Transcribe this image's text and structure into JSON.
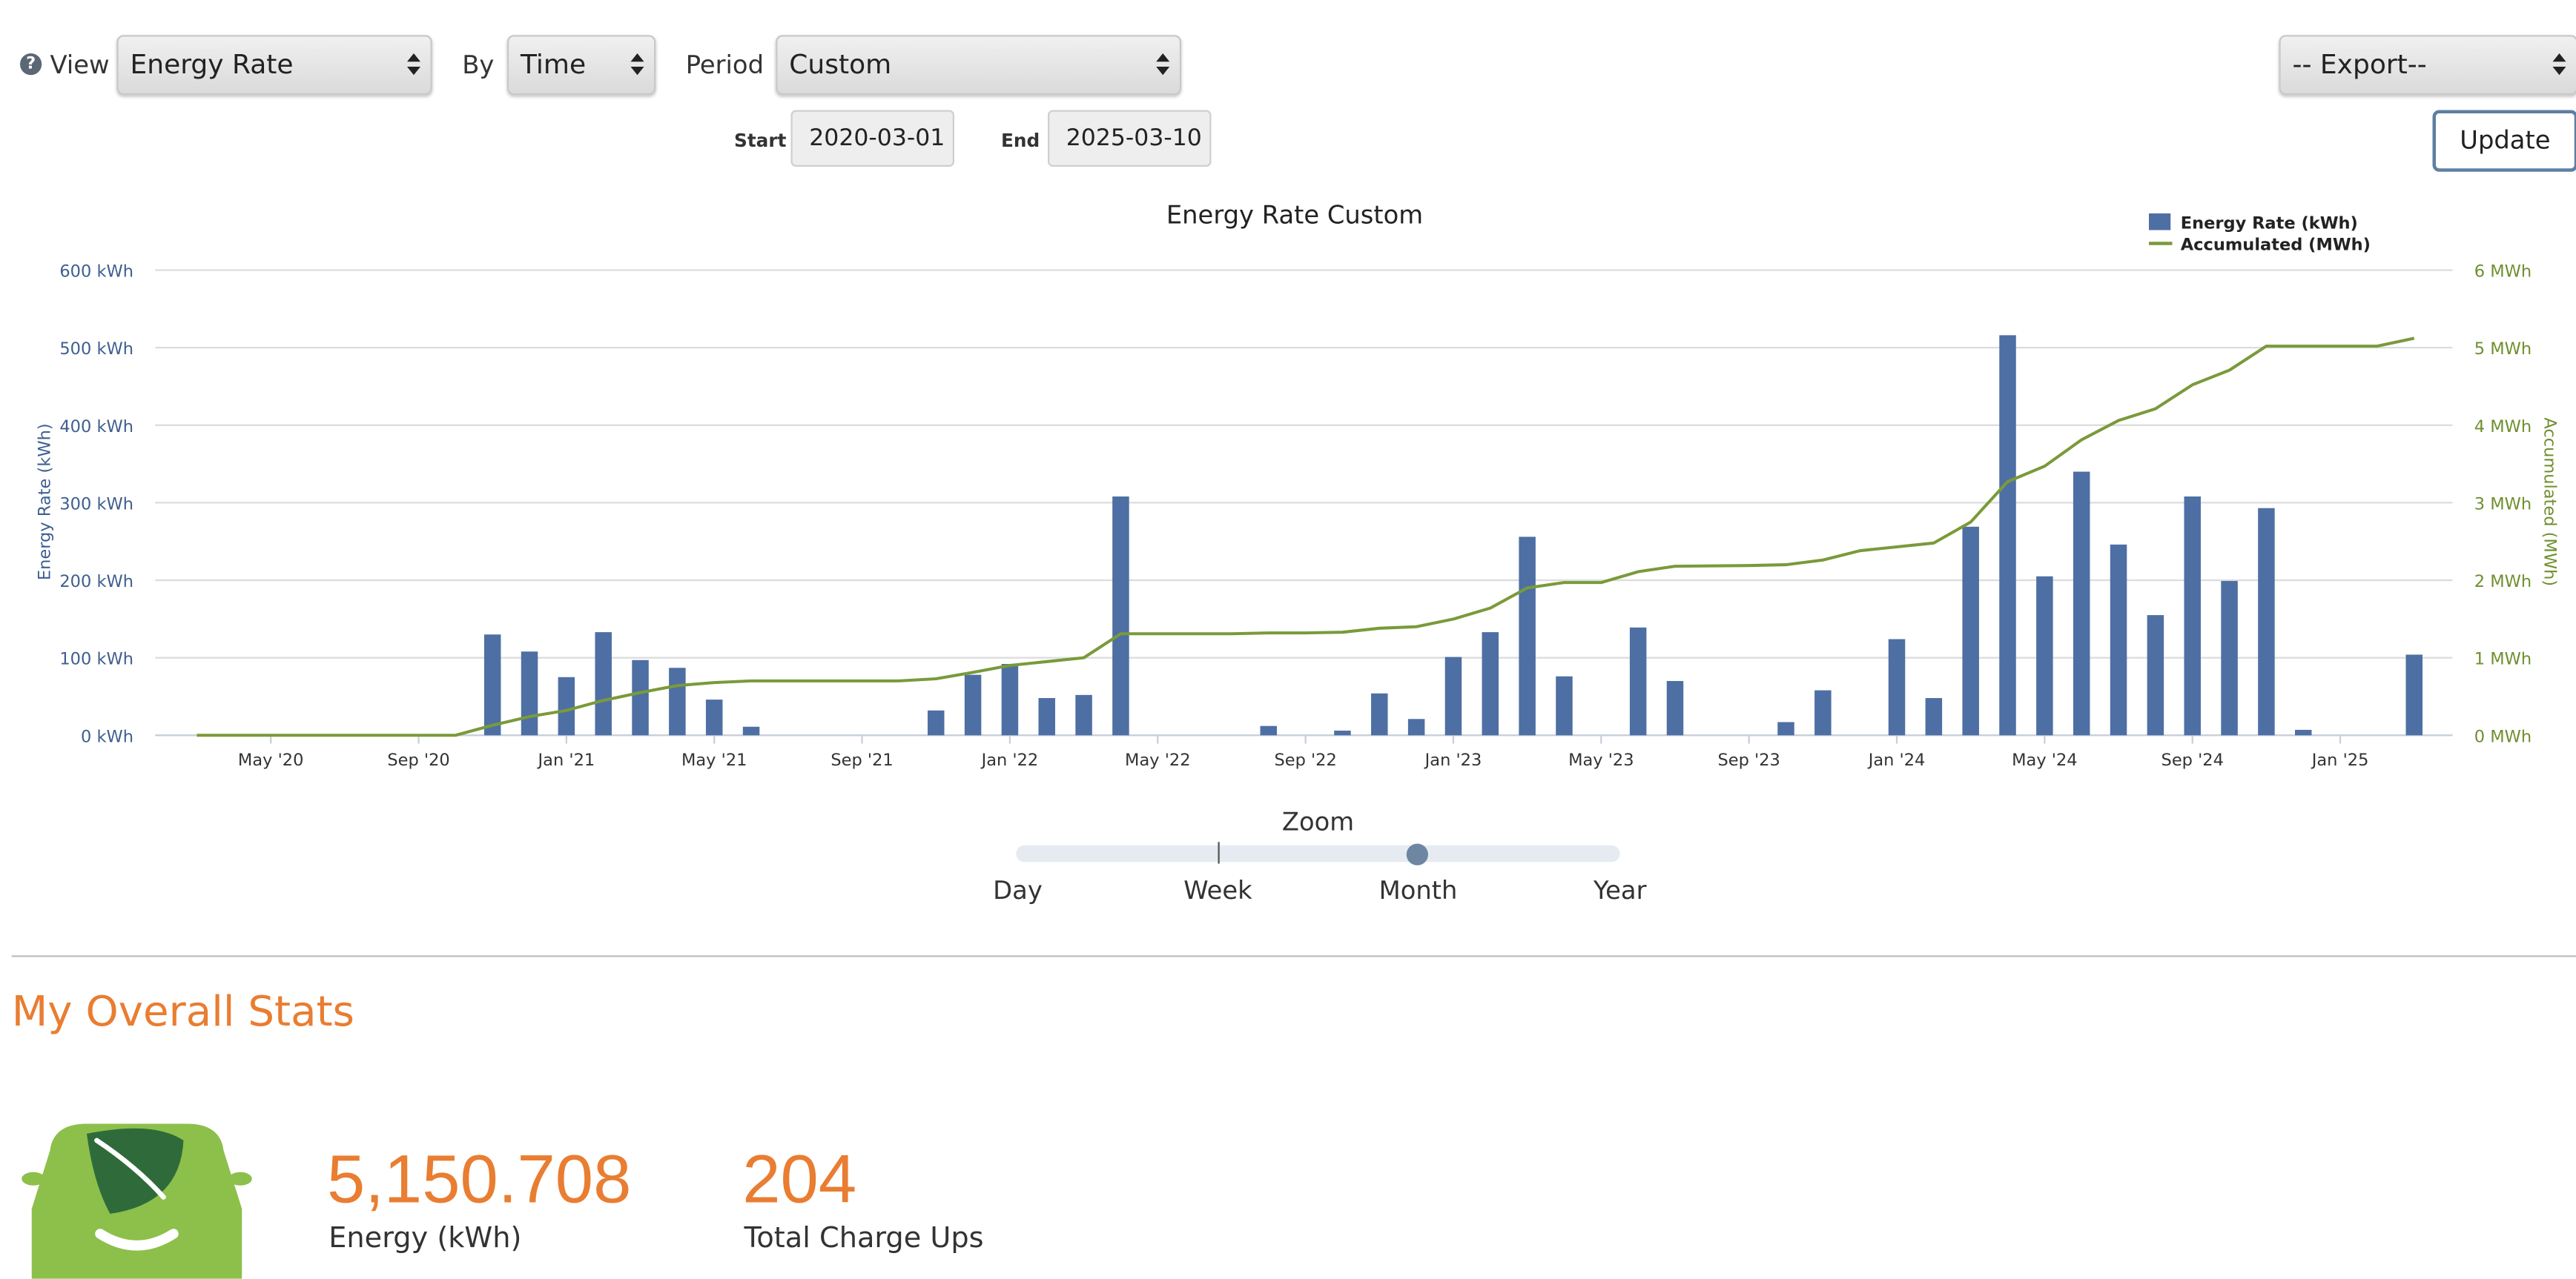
{
  "controls": {
    "view_label": "View",
    "view_value": "Energy Rate",
    "by_label": "By",
    "by_value": "Time",
    "period_label": "Period",
    "period_value": "Custom",
    "export_value": "-- Export--",
    "start_label": "Start",
    "start_value": "2020-03-01",
    "end_label": "End",
    "end_value": "2025-03-10",
    "update_label": "Update"
  },
  "chart_data": {
    "type": "bar",
    "title": "Energy Rate Custom",
    "xlabel": "",
    "ylabel": "Energy Rate (kWh)",
    "y2label": "Accumulated (MWh)",
    "ylim": [
      0,
      600
    ],
    "y2lim": [
      0,
      6
    ],
    "yticks": [
      "0 kWh",
      "100 kWh",
      "200 kWh",
      "300 kWh",
      "400 kWh",
      "500 kWh",
      "600 kWh"
    ],
    "y2ticks": [
      "0 MWh",
      "1 MWh",
      "2 MWh",
      "3 MWh",
      "4 MWh",
      "5 MWh",
      "6 MWh"
    ],
    "xticks": [
      "May '20",
      "Sep '20",
      "Jan '21",
      "May '21",
      "Sep '21",
      "Jan '22",
      "May '22",
      "Sep '22",
      "Jan '23",
      "May '23",
      "Sep '23",
      "Jan '24",
      "May '24",
      "Sep '24",
      "Jan '25"
    ],
    "grid": true,
    "legend_position": "top-right",
    "series": [
      {
        "name": "Energy Rate (kWh)",
        "color": "#4e6fa3",
        "kind": "bar",
        "x": [
          "2020-11",
          "2020-12",
          "2021-01",
          "2021-02",
          "2021-03",
          "2021-04",
          "2021-05",
          "2021-06",
          "2021-11",
          "2021-12",
          "2022-01",
          "2022-02",
          "2022-03",
          "2022-04",
          "2022-08",
          "2022-10",
          "2022-11",
          "2022-12",
          "2023-01",
          "2023-02",
          "2023-03",
          "2023-04",
          "2023-06",
          "2023-07",
          "2023-10",
          "2023-11",
          "2024-01",
          "2024-02",
          "2024-03",
          "2024-04",
          "2024-05",
          "2024-06",
          "2024-07",
          "2024-08",
          "2024-09",
          "2024-10",
          "2024-11",
          "2024-12",
          "2025-03"
        ],
        "values": [
          130,
          108,
          75,
          133,
          97,
          87,
          46,
          11,
          32,
          78,
          92,
          48,
          52,
          308,
          12,
          6,
          54,
          21,
          101,
          133,
          256,
          76,
          139,
          70,
          17,
          58,
          124,
          48,
          269,
          516,
          205,
          340,
          246,
          155,
          308,
          199,
          293,
          7,
          104
        ]
      },
      {
        "name": "Accumulated (MWh)",
        "color": "#7a9a3a",
        "kind": "line",
        "x": [
          "2020-03",
          "2020-10",
          "2020-11",
          "2020-12",
          "2021-01",
          "2021-02",
          "2021-03",
          "2021-04",
          "2021-05",
          "2021-06",
          "2021-10",
          "2021-11",
          "2021-12",
          "2022-01",
          "2022-02",
          "2022-03",
          "2022-04",
          "2022-07",
          "2022-08",
          "2022-09",
          "2022-10",
          "2022-11",
          "2022-12",
          "2023-01",
          "2023-02",
          "2023-03",
          "2023-04",
          "2023-05",
          "2023-06",
          "2023-07",
          "2023-09",
          "2023-10",
          "2023-11",
          "2023-12",
          "2024-01",
          "2024-02",
          "2024-03",
          "2024-04",
          "2024-05",
          "2024-06",
          "2024-07",
          "2024-08",
          "2024-09",
          "2024-10",
          "2024-11",
          "2025-02",
          "2025-03"
        ],
        "values": [
          0,
          0,
          0.13,
          0.24,
          0.32,
          0.45,
          0.55,
          0.64,
          0.68,
          0.7,
          0.7,
          0.73,
          0.81,
          0.9,
          0.95,
          1.0,
          1.31,
          1.31,
          1.32,
          1.32,
          1.33,
          1.38,
          1.4,
          1.5,
          1.64,
          1.9,
          1.97,
          1.97,
          2.11,
          2.18,
          2.19,
          2.2,
          2.26,
          2.38,
          2.43,
          2.48,
          2.75,
          3.27,
          3.47,
          3.81,
          4.06,
          4.21,
          4.52,
          4.71,
          5.02,
          5.02,
          5.12
        ]
      }
    ]
  },
  "zoom": {
    "title": "Zoom",
    "options": [
      "Day",
      "Week",
      "Month",
      "Year"
    ],
    "selected": "Month"
  },
  "stats": {
    "title": "My Overall Stats",
    "energy_value": "5,150.708",
    "energy_label": "Energy (kWh)",
    "chargeups_value": "204",
    "chargeups_label": "Total Charge Ups",
    "icon": "car-leaf-icon",
    "icon_color": "#8cc04b"
  }
}
